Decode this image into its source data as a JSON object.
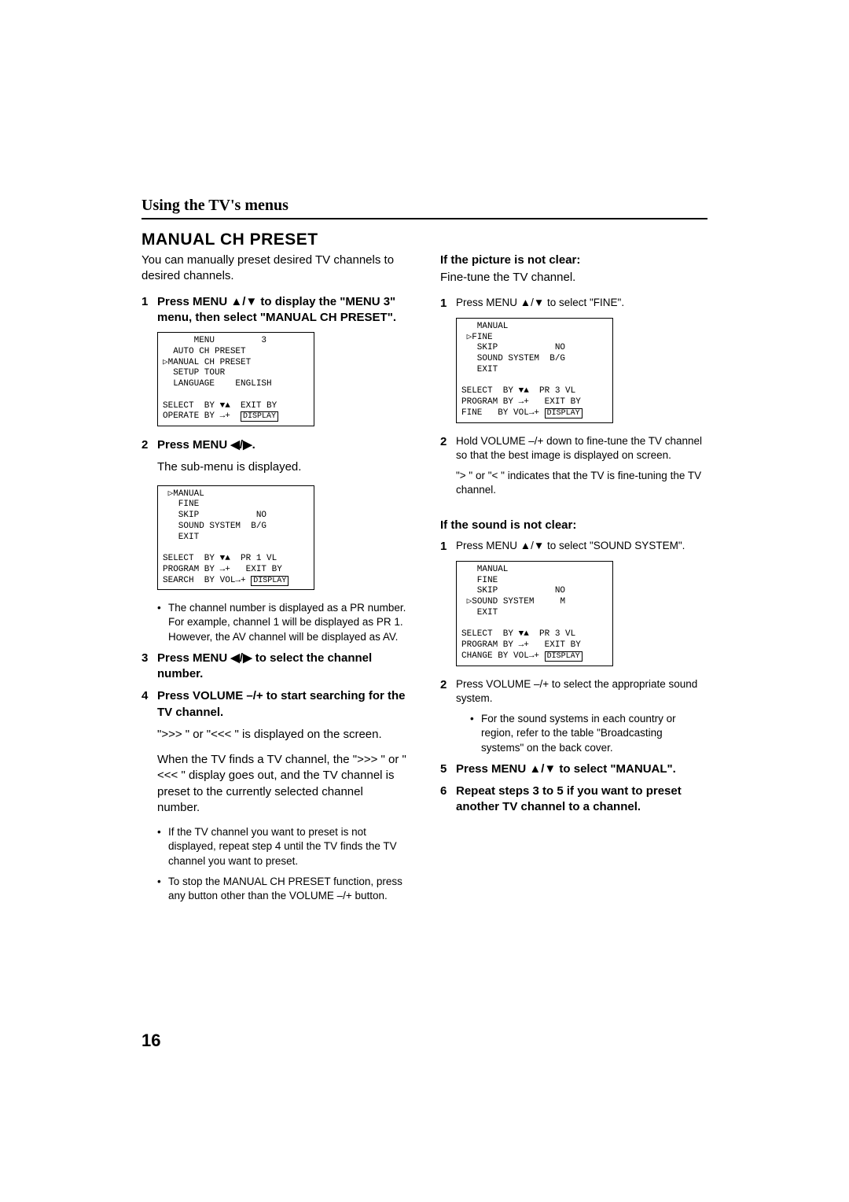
{
  "page_number": "16",
  "section_header": "Using the TV's menus",
  "title": "MANUAL CH PRESET",
  "left": {
    "intro": "You can manually preset desired TV channels to desired channels.",
    "step1_bold": "Press MENU ▲/▼ to display the \"MENU 3\" menu, then select \"MANUAL CH PRESET\".",
    "osd1": "      MENU         3\n  AUTO CH PRESET\n▷MANUAL CH PRESET\n  SETUP TOUR\n  LANGUAGE    ENGLISH\n\nSELECT  BY ▼▲  EXIT BY\nOPERATE BY →+  DISPLAY",
    "step2_bold": "Press MENU ◀/▶.",
    "step2_line": "The sub-menu is displayed.",
    "osd2": " ▷MANUAL\n   FINE\n   SKIP           NO\n   SOUND SYSTEM  B/G\n   EXIT\n\nSELECT  BY ▼▲  PR 1 VL\nPROGRAM BY →+   EXIT BY\nSEARCH  BY VOL→+ DISPLAY",
    "bullet1": "The channel number is displayed as a PR number. For example, channel 1 will be displayed as PR 1. However, the AV channel will be displayed as AV.",
    "step3_bold": "Press MENU ◀/▶ to select the channel number.",
    "step4_bold": "Press VOLUME –/+ to start searching for the TV channel.",
    "step4_a": "\">>> \" or \"<<< \" is displayed on the screen.",
    "step4_b": "When the TV finds a TV channel, the \">>> \" or \"<<< \" display goes out, and the TV channel is preset to the currently selected channel number.",
    "bullet2": "If the TV channel you want to preset is not displayed, repeat step 4 until the TV finds the TV channel you want to preset.",
    "bullet3": "To stop the MANUAL CH PRESET function, press any button other than the VOLUME –/+ button."
  },
  "right": {
    "pic_head": "If the picture is not clear:",
    "pic_line": "Fine-tune the TV channel.",
    "pic_step1": "Press MENU ▲/▼ to select \"FINE\".",
    "osd3": "   MANUAL\n ▷FINE\n   SKIP           NO\n   SOUND SYSTEM  B/G\n   EXIT\n\nSELECT  BY ▼▲  PR 3 VL\nPROGRAM BY →+   EXIT BY\nFINE   BY VOL→+ DISPLAY",
    "pic_step2a": "Hold VOLUME –/+ down to fine-tune the TV channel so that the best image is displayed on screen.",
    "pic_step2b": "\"> \" or \"< \" indicates that the TV is fine-tuning the TV channel.",
    "snd_head": "If the sound is not clear:",
    "snd_step1": "Press MENU ▲/▼ to select \"SOUND SYSTEM\".",
    "osd4": "   MANUAL\n   FINE\n   SKIP           NO\n ▷SOUND SYSTEM     M\n   EXIT\n\nSELECT  BY ▼▲  PR 3 VL\nPROGRAM BY →+   EXIT BY\nCHANGE BY VOL→+ DISPLAY",
    "snd_step2": "Press VOLUME –/+ to select the appropriate sound system.",
    "snd_bullet": "For the sound systems in each country or region, refer to the table \"Broadcasting systems\" on the back cover.",
    "step5_bold": "Press MENU ▲/▼ to select \"MANUAL\".",
    "step6_bold": "Repeat steps 3 to 5 if you want to preset another TV channel to a channel."
  }
}
